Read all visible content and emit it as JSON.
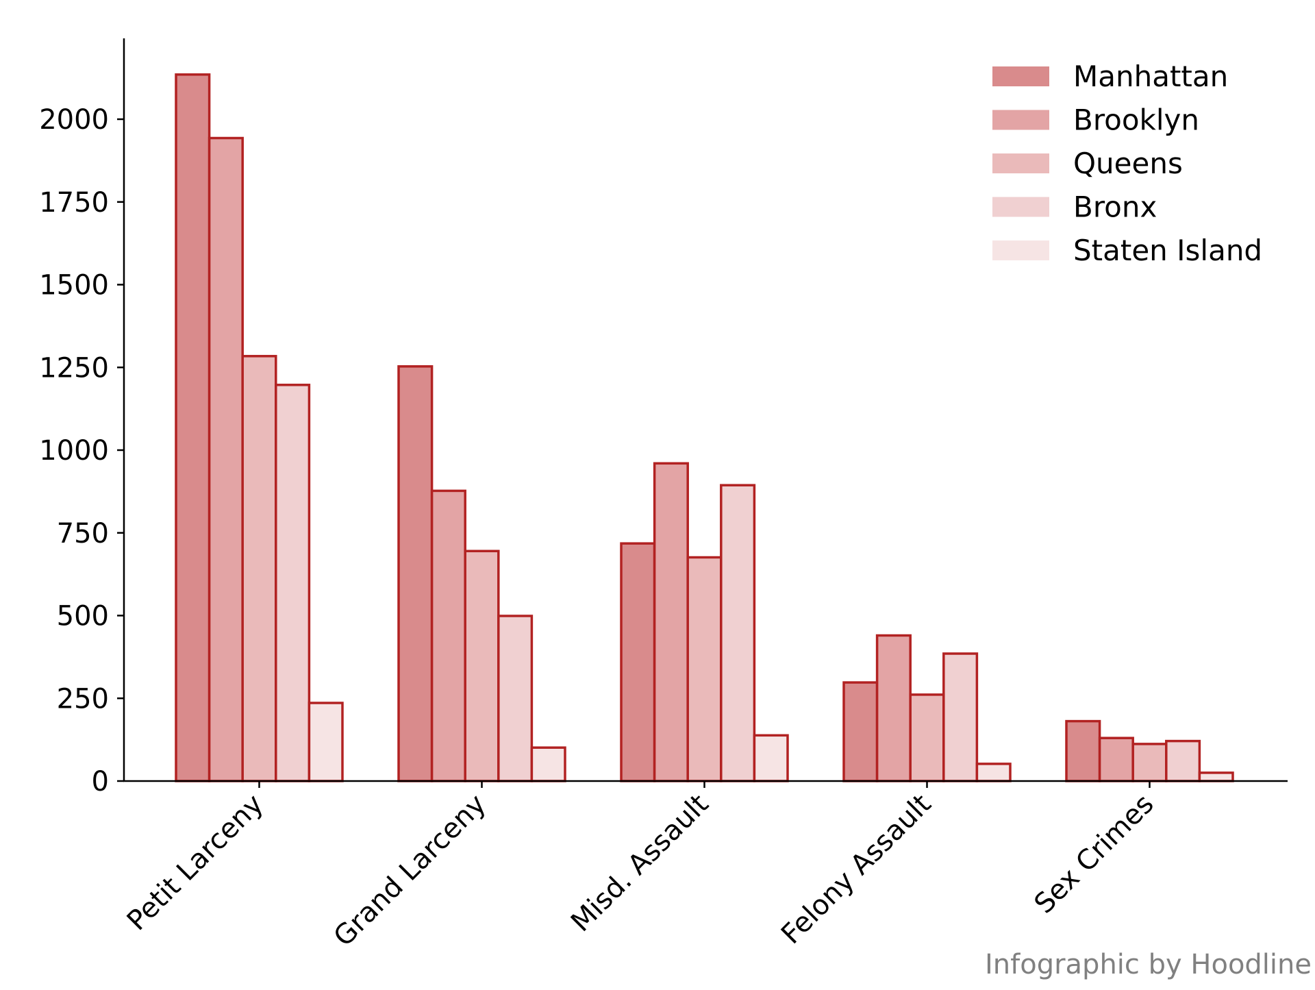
{
  "chart_data": {
    "type": "bar",
    "title": "",
    "xlabel": "",
    "ylabel": "",
    "categories": [
      "Petit Larceny",
      "Grand Larceny",
      "Misd. Assault",
      "Felony Assault",
      "Sex Crimes"
    ],
    "series": [
      {
        "name": "Manhattan",
        "values": [
          2135,
          1253,
          718,
          298,
          181
        ],
        "color": "#d98b8c"
      },
      {
        "name": "Brooklyn",
        "values": [
          1943,
          877,
          960,
          440,
          130
        ],
        "color": "#e3a4a5"
      },
      {
        "name": "Queens",
        "values": [
          1284,
          695,
          676,
          261,
          112
        ],
        "color": "#eababa"
      },
      {
        "name": "Bronx",
        "values": [
          1197,
          499,
          894,
          385,
          121
        ],
        "color": "#f0d0d1"
      },
      {
        "name": "Staten Island",
        "values": [
          236,
          101,
          138,
          52,
          25
        ],
        "color": "#f6e4e4"
      }
    ],
    "ylim": [
      0,
      2250
    ],
    "yticks": [
      0,
      250,
      500,
      750,
      1000,
      1250,
      1500,
      1750,
      2000
    ],
    "bar_edge_color": "#b22222",
    "grid": false,
    "legend_position": "top-right"
  },
  "credit": "Infographic by Hoodline"
}
